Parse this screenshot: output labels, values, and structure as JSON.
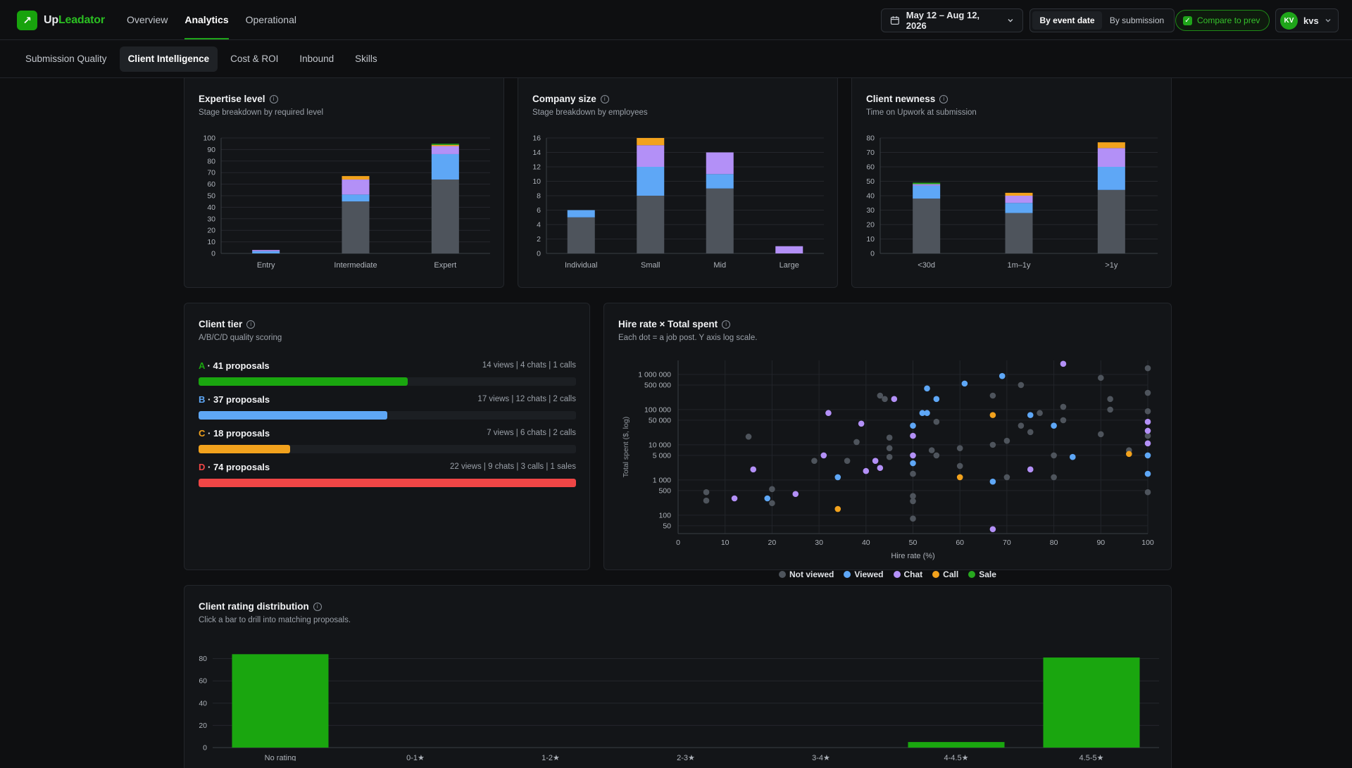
{
  "app": {
    "name_part1": "Up",
    "name_part2": "Leadator",
    "logo_icon": "arrow-up-right-icon",
    "accent": "#1fa51a"
  },
  "nav": {
    "items": [
      {
        "label": "Overview",
        "active": false
      },
      {
        "label": "Analytics",
        "active": true
      },
      {
        "label": "Operational",
        "active": false
      }
    ]
  },
  "date_range": {
    "label": "May 12 – Aug 12, 2026"
  },
  "date_mode": {
    "options": [
      "By event date",
      "By submission"
    ],
    "selected": "By event date"
  },
  "compare": {
    "label": "Compare to prev",
    "checked": true
  },
  "user": {
    "initials": "KV",
    "name": "kvs"
  },
  "subtabs": [
    {
      "label": "Submission Quality",
      "active": false
    },
    {
      "label": "Client Intelligence",
      "active": true
    },
    {
      "label": "Cost & ROI",
      "active": false
    },
    {
      "label": "Inbound",
      "active": false
    },
    {
      "label": "Skills",
      "active": false
    }
  ],
  "colors": {
    "not_viewed": "#4e545c",
    "viewed": "#5ea7f6",
    "chat": "#b390f7",
    "call": "#f2a21d",
    "sale": "#27a81e",
    "tier_A": "#1aa60f",
    "tier_B": "#5ea7f6",
    "tier_C": "#f2a21d",
    "tier_D": "#f04646"
  },
  "expertise": {
    "title": "Expertise level",
    "subtitle": "Stage breakdown by required level",
    "chart_data": {
      "type": "bar",
      "stacked": true,
      "categories": [
        "Entry",
        "Intermediate",
        "Expert"
      ],
      "ylim": [
        0,
        100
      ],
      "yticks": [
        0,
        10,
        20,
        30,
        40,
        50,
        60,
        70,
        80,
        90,
        100
      ],
      "series": [
        {
          "name": "Not viewed",
          "values": [
            0,
            45,
            64
          ]
        },
        {
          "name": "Viewed",
          "values": [
            2,
            6,
            22
          ]
        },
        {
          "name": "Chat",
          "values": [
            1,
            13,
            7
          ]
        },
        {
          "name": "Call",
          "values": [
            0,
            3,
            1
          ]
        },
        {
          "name": "Sale",
          "values": [
            0,
            0,
            1
          ]
        }
      ]
    }
  },
  "company_size": {
    "title": "Company size",
    "subtitle": "Stage breakdown by employees",
    "chart_data": {
      "type": "bar",
      "stacked": true,
      "categories": [
        "Individual",
        "Small",
        "Mid",
        "Large"
      ],
      "ylim": [
        0,
        16
      ],
      "yticks": [
        0,
        2,
        4,
        6,
        8,
        10,
        12,
        14,
        16
      ],
      "series": [
        {
          "name": "Not viewed",
          "values": [
            5,
            8,
            9,
            0
          ]
        },
        {
          "name": "Viewed",
          "values": [
            1,
            4,
            2,
            0
          ]
        },
        {
          "name": "Chat",
          "values": [
            0,
            3,
            3,
            1
          ]
        },
        {
          "name": "Call",
          "values": [
            0,
            1,
            0,
            0
          ]
        },
        {
          "name": "Sale",
          "values": [
            0,
            0,
            0,
            0
          ]
        }
      ]
    }
  },
  "client_newness": {
    "title": "Client newness",
    "subtitle": "Time on Upwork at submission",
    "chart_data": {
      "type": "bar",
      "stacked": true,
      "categories": [
        "<30d",
        "1m–1y",
        ">1y"
      ],
      "ylim": [
        0,
        80
      ],
      "yticks": [
        0,
        10,
        20,
        30,
        40,
        50,
        60,
        70,
        80
      ],
      "series": [
        {
          "name": "Not viewed",
          "values": [
            38,
            28,
            44
          ]
        },
        {
          "name": "Viewed",
          "values": [
            9,
            7,
            16
          ]
        },
        {
          "name": "Chat",
          "values": [
            1,
            5,
            13
          ]
        },
        {
          "name": "Call",
          "values": [
            0,
            2,
            4
          ]
        },
        {
          "name": "Sale",
          "values": [
            1,
            0,
            0
          ]
        }
      ]
    }
  },
  "client_tier": {
    "title": "Client tier",
    "subtitle": "A/B/C/D quality scoring",
    "tiers": [
      {
        "letter": "A",
        "text": " · 41 proposals",
        "stats": "14 views | 4 chats | 1 calls",
        "fraction": 0.554,
        "color": "#1aa60f"
      },
      {
        "letter": "B",
        "text": " · 37 proposals",
        "stats": "17 views | 12 chats | 2 calls",
        "fraction": 0.5,
        "color": "#5ea7f6"
      },
      {
        "letter": "C",
        "text": " · 18 proposals",
        "stats": "7 views | 6 chats | 2 calls",
        "fraction": 0.243,
        "color": "#f2a21d"
      },
      {
        "letter": "D",
        "text": " · 74 proposals",
        "stats": "22 views | 9 chats | 3 calls | 1 sales",
        "fraction": 1.0,
        "color": "#f04646"
      }
    ]
  },
  "hire_scatter": {
    "title": "Hire rate × Total spent",
    "subtitle": "Each dot = a job post. Y axis log scale.",
    "chart_data": {
      "type": "scatter",
      "xlabel": "Hire rate (%)",
      "ylabel": "Total spent ($, log)",
      "xlim": [
        0,
        100
      ],
      "xticks": [
        0,
        10,
        20,
        30,
        40,
        50,
        60,
        70,
        80,
        90,
        100
      ],
      "ylim": [
        30,
        2500000
      ],
      "ylog": true,
      "yticks": [
        50,
        100,
        500,
        1000,
        5000,
        10000,
        50000,
        100000,
        500000,
        1000000
      ],
      "ytick_labels": [
        "50",
        "100",
        "500",
        "1 000",
        "5 000",
        "10 000",
        "50 000",
        "100 000",
        "500 000",
        "1 000 000"
      ],
      "legend": [
        "Not viewed",
        "Viewed",
        "Chat",
        "Call",
        "Sale"
      ],
      "points": [
        {
          "x": 6,
          "y": 450,
          "s": "Not viewed"
        },
        {
          "x": 6,
          "y": 260,
          "s": "Not viewed"
        },
        {
          "x": 15,
          "y": 17000,
          "s": "Not viewed"
        },
        {
          "x": 20,
          "y": 550,
          "s": "Not viewed"
        },
        {
          "x": 20,
          "y": 220,
          "s": "Not viewed"
        },
        {
          "x": 29,
          "y": 3500,
          "s": "Not viewed"
        },
        {
          "x": 36,
          "y": 3500,
          "s": "Not viewed"
        },
        {
          "x": 38,
          "y": 12000,
          "s": "Not viewed"
        },
        {
          "x": 43,
          "y": 250000,
          "s": "Not viewed"
        },
        {
          "x": 44,
          "y": 200000,
          "s": "Not viewed"
        },
        {
          "x": 45,
          "y": 16000,
          "s": "Not viewed"
        },
        {
          "x": 45,
          "y": 8000,
          "s": "Not viewed"
        },
        {
          "x": 45,
          "y": 4500,
          "s": "Not viewed"
        },
        {
          "x": 50,
          "y": 1500,
          "s": "Not viewed"
        },
        {
          "x": 50,
          "y": 350,
          "s": "Not viewed"
        },
        {
          "x": 50,
          "y": 250,
          "s": "Not viewed"
        },
        {
          "x": 50,
          "y": 80,
          "s": "Not viewed"
        },
        {
          "x": 55,
          "y": 45000,
          "s": "Not viewed"
        },
        {
          "x": 54,
          "y": 7000,
          "s": "Not viewed"
        },
        {
          "x": 55,
          "y": 5000,
          "s": "Not viewed"
        },
        {
          "x": 60,
          "y": 8000,
          "s": "Not viewed"
        },
        {
          "x": 60,
          "y": 2500,
          "s": "Not viewed"
        },
        {
          "x": 67,
          "y": 250000,
          "s": "Not viewed"
        },
        {
          "x": 67,
          "y": 10000,
          "s": "Not viewed"
        },
        {
          "x": 70,
          "y": 13000,
          "s": "Not viewed"
        },
        {
          "x": 70,
          "y": 1200,
          "s": "Not viewed"
        },
        {
          "x": 73,
          "y": 500000,
          "s": "Not viewed"
        },
        {
          "x": 73,
          "y": 35000,
          "s": "Not viewed"
        },
        {
          "x": 75,
          "y": 23000,
          "s": "Not viewed"
        },
        {
          "x": 77,
          "y": 80000,
          "s": "Not viewed"
        },
        {
          "x": 82,
          "y": 120000,
          "s": "Not viewed"
        },
        {
          "x": 82,
          "y": 50000,
          "s": "Not viewed"
        },
        {
          "x": 80,
          "y": 5000,
          "s": "Not viewed"
        },
        {
          "x": 80,
          "y": 1200,
          "s": "Not viewed"
        },
        {
          "x": 90,
          "y": 800000,
          "s": "Not viewed"
        },
        {
          "x": 92,
          "y": 200000,
          "s": "Not viewed"
        },
        {
          "x": 92,
          "y": 100000,
          "s": "Not viewed"
        },
        {
          "x": 90,
          "y": 20000,
          "s": "Not viewed"
        },
        {
          "x": 96,
          "y": 7000,
          "s": "Not viewed"
        },
        {
          "x": 100,
          "y": 1500000,
          "s": "Not viewed"
        },
        {
          "x": 100,
          "y": 300000,
          "s": "Not viewed"
        },
        {
          "x": 100,
          "y": 90000,
          "s": "Not viewed"
        },
        {
          "x": 100,
          "y": 18000,
          "s": "Not viewed"
        },
        {
          "x": 100,
          "y": 450,
          "s": "Not viewed"
        },
        {
          "x": 19,
          "y": 300,
          "s": "Viewed"
        },
        {
          "x": 34,
          "y": 1200,
          "s": "Viewed"
        },
        {
          "x": 50,
          "y": 35000,
          "s": "Viewed"
        },
        {
          "x": 50,
          "y": 3000,
          "s": "Viewed"
        },
        {
          "x": 52,
          "y": 80000,
          "s": "Viewed"
        },
        {
          "x": 53,
          "y": 80000,
          "s": "Viewed"
        },
        {
          "x": 53,
          "y": 400000,
          "s": "Viewed"
        },
        {
          "x": 55,
          "y": 200000,
          "s": "Viewed"
        },
        {
          "x": 61,
          "y": 550000,
          "s": "Viewed"
        },
        {
          "x": 69,
          "y": 900000,
          "s": "Viewed"
        },
        {
          "x": 67,
          "y": 900,
          "s": "Viewed"
        },
        {
          "x": 75,
          "y": 70000,
          "s": "Viewed"
        },
        {
          "x": 80,
          "y": 35000,
          "s": "Viewed"
        },
        {
          "x": 84,
          "y": 4500,
          "s": "Viewed"
        },
        {
          "x": 100,
          "y": 5000,
          "s": "Viewed"
        },
        {
          "x": 100,
          "y": 1500,
          "s": "Viewed"
        },
        {
          "x": 12,
          "y": 300,
          "s": "Chat"
        },
        {
          "x": 16,
          "y": 2000,
          "s": "Chat"
        },
        {
          "x": 25,
          "y": 400,
          "s": "Chat"
        },
        {
          "x": 32,
          "y": 80000,
          "s": "Chat"
        },
        {
          "x": 31,
          "y": 5000,
          "s": "Chat"
        },
        {
          "x": 39,
          "y": 40000,
          "s": "Chat"
        },
        {
          "x": 40,
          "y": 1800,
          "s": "Chat"
        },
        {
          "x": 42,
          "y": 3500,
          "s": "Chat"
        },
        {
          "x": 43,
          "y": 2200,
          "s": "Chat"
        },
        {
          "x": 46,
          "y": 200000,
          "s": "Chat"
        },
        {
          "x": 50,
          "y": 18000,
          "s": "Chat"
        },
        {
          "x": 50,
          "y": 5000,
          "s": "Chat"
        },
        {
          "x": 67,
          "y": 40,
          "s": "Chat"
        },
        {
          "x": 75,
          "y": 2000,
          "s": "Chat"
        },
        {
          "x": 82,
          "y": 2000000,
          "s": "Chat"
        },
        {
          "x": 100,
          "y": 45000,
          "s": "Chat"
        },
        {
          "x": 100,
          "y": 25000,
          "s": "Chat"
        },
        {
          "x": 100,
          "y": 11000,
          "s": "Chat"
        },
        {
          "x": 34,
          "y": 150,
          "s": "Call"
        },
        {
          "x": 60,
          "y": 1200,
          "s": "Call"
        },
        {
          "x": 67,
          "y": 70000,
          "s": "Call"
        },
        {
          "x": 96,
          "y": 5500,
          "s": "Call"
        }
      ]
    }
  },
  "rating": {
    "title": "Client rating distribution",
    "subtitle": "Click a bar to drill into matching proposals.",
    "chart_data": {
      "type": "bar",
      "categories": [
        "No rating",
        "0-1★",
        "1-2★",
        "2-3★",
        "3-4★",
        "4-4.5★",
        "4.5-5★"
      ],
      "values": [
        84,
        0,
        0,
        0,
        0,
        5,
        81
      ],
      "ylim": [
        0,
        88
      ],
      "yticks": [
        0,
        20,
        40,
        60,
        80
      ],
      "color": "#1aa60f"
    }
  }
}
